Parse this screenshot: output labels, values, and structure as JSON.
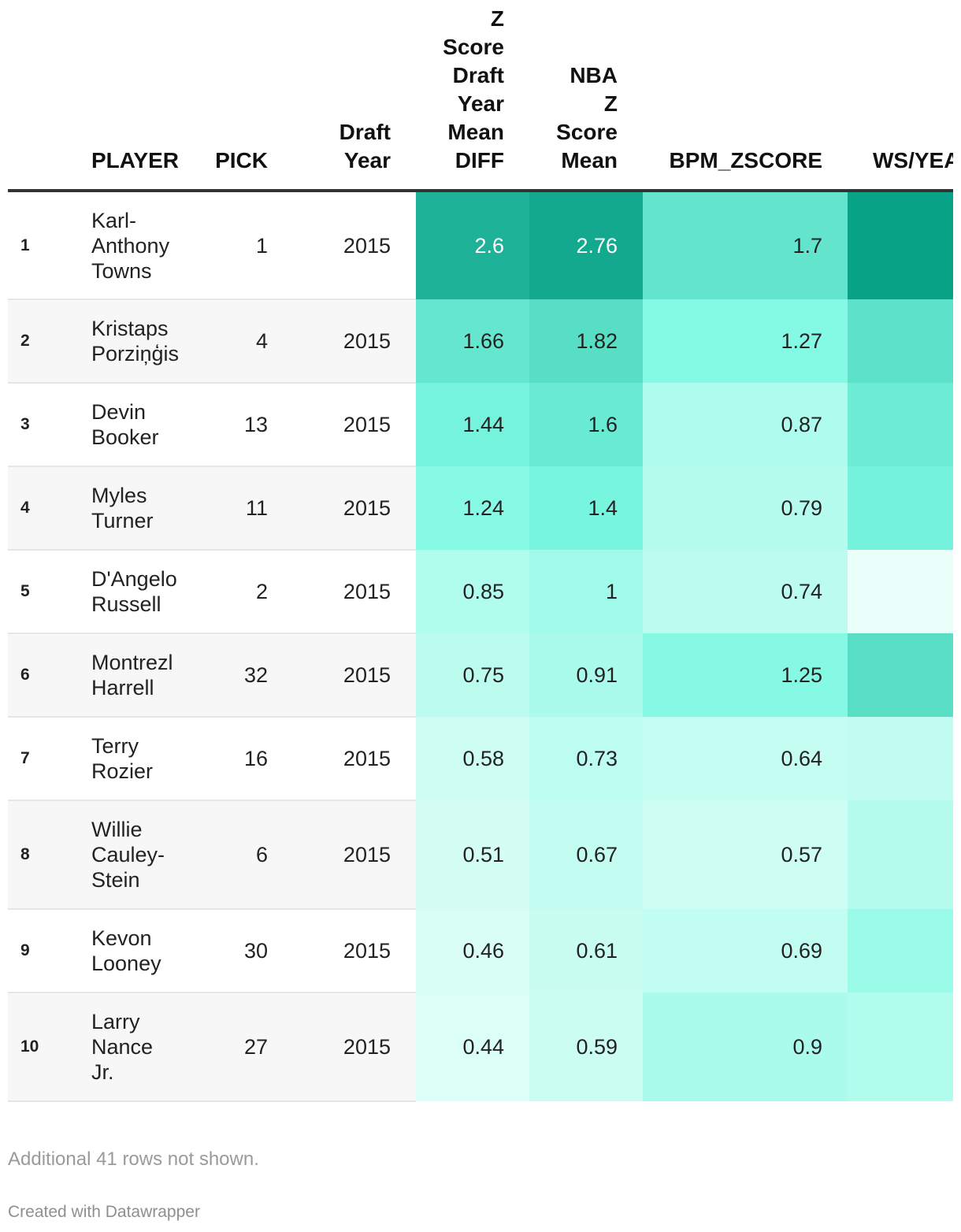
{
  "table": {
    "columns": [
      "",
      "PLAYER",
      "PICK",
      "Draft Year",
      "Z Score Draft Year Mean DIFF",
      "NBA Z Score Mean",
      "BPM_ZSCORE",
      "WS/YEA"
    ],
    "header_lines": {
      "draft_year": [
        "Draft",
        "Year"
      ],
      "z_diff": [
        "Z",
        "Score",
        "Draft",
        "Year",
        "Mean",
        "DIFF"
      ],
      "nba_z": [
        "NBA",
        "Z",
        "Score",
        "Mean"
      ]
    }
  },
  "chart_data": {
    "type": "table",
    "title": "",
    "rows": [
      {
        "rank": "1",
        "player": [
          "Karl-",
          "Anthony",
          "Towns"
        ],
        "pick": 1,
        "draft_year": 2015,
        "z_diff": 2.6,
        "nba_z": 2.76,
        "bpm_z": 1.7,
        "ws_shade": 2.9
      },
      {
        "rank": "2",
        "player": [
          "Kristaps",
          "Porziņģis"
        ],
        "pick": 4,
        "draft_year": 2015,
        "z_diff": 1.66,
        "nba_z": 1.82,
        "bpm_z": 1.27,
        "ws_shade": 1.75
      },
      {
        "rank": "3",
        "player": [
          "Devin",
          "Booker"
        ],
        "pick": 13,
        "draft_year": 2015,
        "z_diff": 1.44,
        "nba_z": 1.6,
        "bpm_z": 0.87,
        "ws_shade": 1.55
      },
      {
        "rank": "4",
        "player": [
          "Myles",
          "Turner"
        ],
        "pick": 11,
        "draft_year": 2015,
        "z_diff": 1.24,
        "nba_z": 1.4,
        "bpm_z": 0.79,
        "ws_shade": 1.45
      },
      {
        "rank": "5",
        "player": [
          "D'Angelo",
          "Russell"
        ],
        "pick": 2,
        "draft_year": 2015,
        "z_diff": 0.85,
        "nba_z": 1,
        "bpm_z": 0.74,
        "ws_shade": 0.3
      },
      {
        "rank": "6",
        "player": [
          "Montrezl",
          "Harrell"
        ],
        "pick": 32,
        "draft_year": 2015,
        "z_diff": 0.75,
        "nba_z": 0.91,
        "bpm_z": 1.25,
        "ws_shade": 1.8
      },
      {
        "rank": "7",
        "player": [
          "Terry",
          "Rozier"
        ],
        "pick": 16,
        "draft_year": 2015,
        "z_diff": 0.58,
        "nba_z": 0.73,
        "bpm_z": 0.64,
        "ws_shade": 0.7
      },
      {
        "rank": "8",
        "player": [
          "Willie",
          "Cauley-",
          "Stein"
        ],
        "pick": 6,
        "draft_year": 2015,
        "z_diff": 0.51,
        "nba_z": 0.67,
        "bpm_z": 0.57,
        "ws_shade": 0.8
      },
      {
        "rank": "9",
        "player": [
          "Kevon",
          "Looney"
        ],
        "pick": 30,
        "draft_year": 2015,
        "z_diff": 0.46,
        "nba_z": 0.61,
        "bpm_z": 0.69,
        "ws_shade": 1.05
      },
      {
        "rank": "10",
        "player": [
          "Larry",
          "Nance",
          "Jr."
        ],
        "pick": 27,
        "draft_year": 2015,
        "z_diff": 0.44,
        "nba_z": 0.59,
        "bpm_z": 0.9,
        "ws_shade": 0.85
      }
    ],
    "color_scale": {
      "min": 0.3,
      "max": 3.0,
      "low_color": "#eafff9",
      "mid_color": "#7ef9e3",
      "high_color": "#009c80"
    }
  },
  "footer": {
    "note": "Additional 41 rows not shown.",
    "credit": "Created with Datawrapper"
  }
}
